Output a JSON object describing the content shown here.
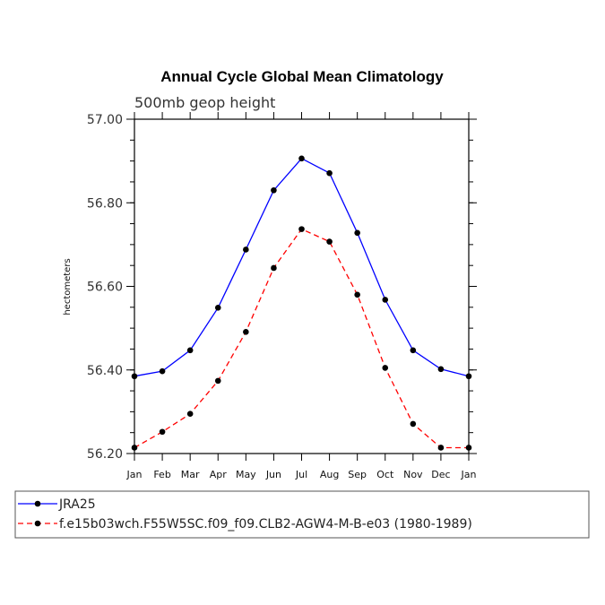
{
  "chart_data": {
    "type": "line",
    "title": "Annual Cycle Global Mean Climatology",
    "subtitle": "500mb geop height",
    "xlabel": "",
    "ylabel": "hectometers",
    "categories": [
      "Jan",
      "Feb",
      "Mar",
      "Apr",
      "May",
      "Jun",
      "Jul",
      "Aug",
      "Sep",
      "Oct",
      "Nov",
      "Dec",
      "Jan"
    ],
    "ylim": [
      56.2,
      57.0
    ],
    "yticks": [
      "56.20",
      "56.40",
      "56.60",
      "56.80",
      "57.00"
    ],
    "ytick_values": [
      56.2,
      56.4,
      56.6,
      56.8,
      57.0
    ],
    "grid": false,
    "legend_position": "bottom",
    "series": [
      {
        "name": "JRA25",
        "color": "#0000ff",
        "style": "solid",
        "values": [
          56.385,
          56.397,
          56.447,
          56.549,
          56.688,
          56.83,
          56.906,
          56.871,
          56.728,
          56.568,
          56.447,
          56.402,
          56.385
        ]
      },
      {
        "name": "f.e15b03wch.F55W5SC.f09_f09.CLB2-AGW4-M-B-e03 (1980-1989)",
        "color": "#ff0000",
        "style": "dashed",
        "values": [
          56.214,
          56.252,
          56.295,
          56.374,
          56.491,
          56.644,
          56.737,
          56.707,
          56.58,
          56.405,
          56.271,
          56.214,
          56.214
        ]
      }
    ]
  }
}
